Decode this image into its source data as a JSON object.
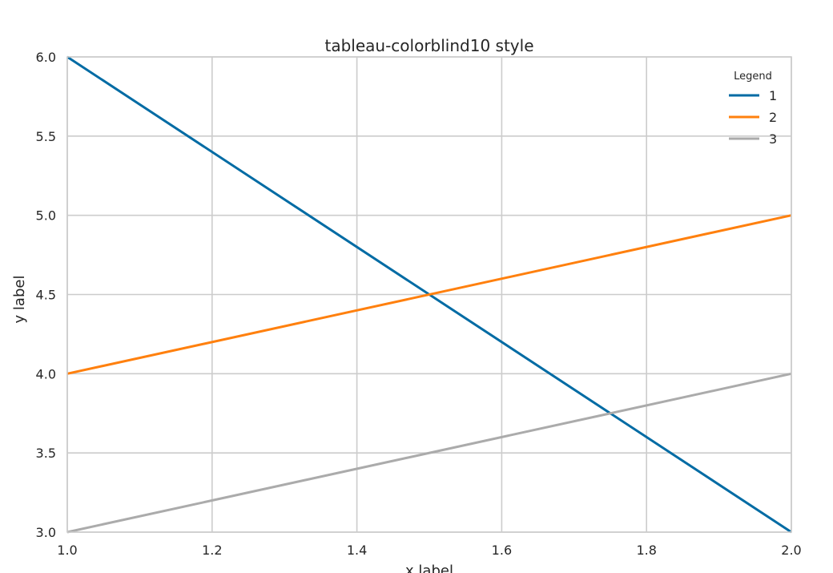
{
  "chart_data": {
    "type": "line",
    "title": "tableau-colorblind10 style",
    "xlabel": "x label",
    "ylabel": "y label",
    "xlim": [
      1.0,
      2.0
    ],
    "ylim": [
      3.0,
      6.0
    ],
    "x_ticks": [
      "1.0",
      "1.2",
      "1.4",
      "1.6",
      "1.8",
      "2.0"
    ],
    "y_ticks": [
      "3.0",
      "3.5",
      "4.0",
      "4.5",
      "5.0",
      "5.5",
      "6.0"
    ],
    "grid": true,
    "legend": {
      "title": "Legend",
      "placement": "top-right"
    },
    "series": [
      {
        "name": "1",
        "color": "#006BA4",
        "x": [
          1.0,
          2.0
        ],
        "y": [
          6.0,
          3.0
        ]
      },
      {
        "name": "2",
        "color": "#FF800E",
        "x": [
          1.0,
          2.0
        ],
        "y": [
          4.0,
          5.0
        ]
      },
      {
        "name": "3",
        "color": "#ABABAB",
        "x": [
          1.0,
          2.0
        ],
        "y": [
          3.0,
          4.0
        ]
      }
    ]
  }
}
